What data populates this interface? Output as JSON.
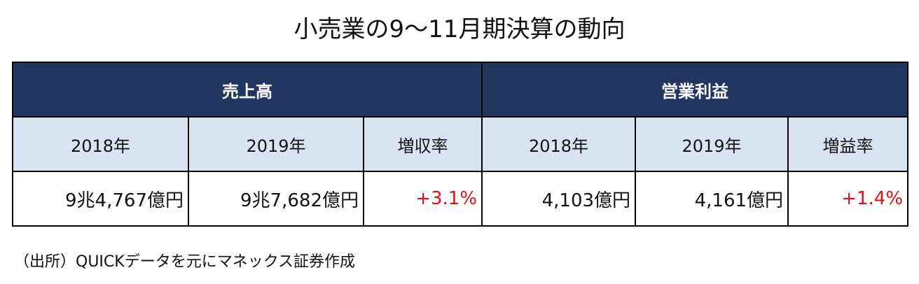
{
  "title": "小売業の9～11月期決算の動向",
  "table": {
    "groups": [
      "売上高",
      "営業利益"
    ],
    "columns": [
      "2018年",
      "2019年",
      "増収率",
      "2018年",
      "2019年",
      "増益率"
    ],
    "rows": [
      [
        "9兆4,767億円",
        "9兆7,682億円",
        "+3.1%",
        "4,103億円",
        "4,161億円",
        "+1.4%"
      ]
    ]
  },
  "footnote": "（出所）QUICKデータを元にマネックス証券作成"
}
